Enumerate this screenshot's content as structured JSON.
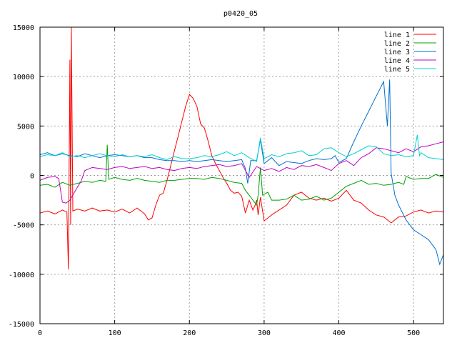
{
  "chart_data": {
    "type": "line",
    "title": "p0420_05",
    "xlabel": "",
    "ylabel": "",
    "xlim": [
      0,
      540
    ],
    "ylim": [
      -15000,
      15000
    ],
    "x_ticks": [
      0,
      100,
      200,
      300,
      400,
      500
    ],
    "y_ticks": [
      -15000,
      -10000,
      -5000,
      0,
      5000,
      10000,
      15000
    ],
    "grid": true,
    "legend_position": "top-right",
    "series": [
      {
        "name": "line 1",
        "color": "#ff0000",
        "points": [
          [
            0,
            -3800
          ],
          [
            10,
            -3600
          ],
          [
            20,
            -3900
          ],
          [
            30,
            -3500
          ],
          [
            36,
            -3700
          ],
          [
            38,
            -9500
          ],
          [
            40,
            11700
          ],
          [
            41,
            -5000
          ],
          [
            42,
            15000
          ],
          [
            44,
            -3600
          ],
          [
            50,
            -3400
          ],
          [
            60,
            -3600
          ],
          [
            70,
            -3300
          ],
          [
            80,
            -3600
          ],
          [
            90,
            -3500
          ],
          [
            100,
            -3700
          ],
          [
            110,
            -3400
          ],
          [
            120,
            -3800
          ],
          [
            130,
            -3300
          ],
          [
            140,
            -3900
          ],
          [
            145,
            -4500
          ],
          [
            150,
            -4300
          ],
          [
            155,
            -3000
          ],
          [
            160,
            -2000
          ],
          [
            165,
            -1800
          ],
          [
            170,
            -500
          ],
          [
            175,
            1000
          ],
          [
            180,
            2500
          ],
          [
            185,
            4000
          ],
          [
            190,
            5500
          ],
          [
            195,
            7000
          ],
          [
            200,
            8200
          ],
          [
            205,
            7800
          ],
          [
            210,
            7000
          ],
          [
            215,
            5200
          ],
          [
            220,
            4800
          ],
          [
            225,
            3500
          ],
          [
            230,
            2000
          ],
          [
            235,
            1200
          ],
          [
            240,
            500
          ],
          [
            245,
            -200
          ],
          [
            250,
            -800
          ],
          [
            255,
            -1500
          ],
          [
            260,
            -1800
          ],
          [
            265,
            -1700
          ],
          [
            270,
            -2100
          ],
          [
            275,
            -3800
          ],
          [
            280,
            -2500
          ],
          [
            285,
            -3500
          ],
          [
            288,
            -3000
          ],
          [
            290,
            -2500
          ],
          [
            292,
            -4000
          ],
          [
            295,
            -2200
          ],
          [
            300,
            -4600
          ],
          [
            305,
            -4300
          ],
          [
            310,
            -4000
          ],
          [
            320,
            -3500
          ],
          [
            330,
            -3000
          ],
          [
            340,
            -2000
          ],
          [
            350,
            -1700
          ],
          [
            360,
            -2300
          ],
          [
            370,
            -2500
          ],
          [
            380,
            -2300
          ],
          [
            390,
            -2600
          ],
          [
            400,
            -2300
          ],
          [
            410,
            -1500
          ],
          [
            420,
            -2500
          ],
          [
            430,
            -2800
          ],
          [
            440,
            -3500
          ],
          [
            450,
            -4000
          ],
          [
            460,
            -4200
          ],
          [
            470,
            -4800
          ],
          [
            480,
            -4200
          ],
          [
            490,
            -4100
          ],
          [
            500,
            -3700
          ],
          [
            510,
            -3500
          ],
          [
            520,
            -3800
          ],
          [
            530,
            -3600
          ],
          [
            540,
            -3700
          ]
        ]
      },
      {
        "name": "line 2",
        "color": "#00a000",
        "points": [
          [
            0,
            -1000
          ],
          [
            10,
            -900
          ],
          [
            20,
            -1200
          ],
          [
            30,
            -700
          ],
          [
            40,
            -1000
          ],
          [
            50,
            -800
          ],
          [
            60,
            -600
          ],
          [
            70,
            -700
          ],
          [
            80,
            -500
          ],
          [
            88,
            -600
          ],
          [
            90,
            3100
          ],
          [
            92,
            -400
          ],
          [
            100,
            -200
          ],
          [
            110,
            -400
          ],
          [
            120,
            -500
          ],
          [
            130,
            -300
          ],
          [
            140,
            -500
          ],
          [
            150,
            -600
          ],
          [
            160,
            -700
          ],
          [
            170,
            -500
          ],
          [
            180,
            -500
          ],
          [
            190,
            -400
          ],
          [
            200,
            -300
          ],
          [
            210,
            -300
          ],
          [
            220,
            -400
          ],
          [
            230,
            -200
          ],
          [
            240,
            -300
          ],
          [
            250,
            -500
          ],
          [
            260,
            -700
          ],
          [
            270,
            -800
          ],
          [
            275,
            -1500
          ],
          [
            280,
            -2000
          ],
          [
            285,
            -2500
          ],
          [
            290,
            -3000
          ],
          [
            292,
            -2000
          ],
          [
            295,
            800
          ],
          [
            298,
            -2000
          ],
          [
            305,
            -1700
          ],
          [
            310,
            -2500
          ],
          [
            320,
            -2500
          ],
          [
            330,
            -2400
          ],
          [
            340,
            -2000
          ],
          [
            350,
            -2500
          ],
          [
            360,
            -2400
          ],
          [
            370,
            -2100
          ],
          [
            380,
            -2500
          ],
          [
            390,
            -2300
          ],
          [
            400,
            -1700
          ],
          [
            410,
            -1100
          ],
          [
            420,
            -800
          ],
          [
            430,
            -500
          ],
          [
            440,
            -900
          ],
          [
            450,
            -800
          ],
          [
            460,
            -1000
          ],
          [
            470,
            -900
          ],
          [
            480,
            -700
          ],
          [
            487,
            -900
          ],
          [
            490,
            -100
          ],
          [
            500,
            -400
          ],
          [
            510,
            -300
          ],
          [
            520,
            -300
          ],
          [
            530,
            100
          ],
          [
            540,
            -200
          ]
        ]
      },
      {
        "name": "line 3",
        "color": "#0070d0",
        "points": [
          [
            0,
            2100
          ],
          [
            10,
            2300
          ],
          [
            20,
            2000
          ],
          [
            30,
            2200
          ],
          [
            40,
            2000
          ],
          [
            50,
            1900
          ],
          [
            60,
            2200
          ],
          [
            70,
            2000
          ],
          [
            80,
            1800
          ],
          [
            90,
            2000
          ],
          [
            100,
            2100
          ],
          [
            110,
            2000
          ],
          [
            120,
            1900
          ],
          [
            130,
            2000
          ],
          [
            140,
            1800
          ],
          [
            150,
            1800
          ],
          [
            160,
            1600
          ],
          [
            170,
            1500
          ],
          [
            180,
            1500
          ],
          [
            190,
            1400
          ],
          [
            200,
            1500
          ],
          [
            210,
            1400
          ],
          [
            220,
            1500
          ],
          [
            230,
            1600
          ],
          [
            240,
            1500
          ],
          [
            250,
            1400
          ],
          [
            260,
            1500
          ],
          [
            270,
            1600
          ],
          [
            275,
            700
          ],
          [
            278,
            -800
          ],
          [
            282,
            1500
          ],
          [
            290,
            1500
          ],
          [
            295,
            3600
          ],
          [
            300,
            1200
          ],
          [
            310,
            1800
          ],
          [
            320,
            1000
          ],
          [
            330,
            1400
          ],
          [
            340,
            1300
          ],
          [
            350,
            1200
          ],
          [
            360,
            1500
          ],
          [
            370,
            1700
          ],
          [
            380,
            1600
          ],
          [
            390,
            1700
          ],
          [
            395,
            2000
          ],
          [
            400,
            1300
          ],
          [
            410,
            1700
          ],
          [
            420,
            3400
          ],
          [
            430,
            5000
          ],
          [
            440,
            6500
          ],
          [
            450,
            8000
          ],
          [
            460,
            9500
          ],
          [
            465,
            5000
          ],
          [
            468,
            9700
          ],
          [
            470,
            200
          ],
          [
            475,
            -2000
          ],
          [
            480,
            -3000
          ],
          [
            490,
            -4500
          ],
          [
            500,
            -5500
          ],
          [
            510,
            -6000
          ],
          [
            520,
            -6500
          ],
          [
            530,
            -7500
          ],
          [
            535,
            -9000
          ],
          [
            540,
            -8000
          ]
        ]
      },
      {
        "name": "line 4",
        "color": "#c000c0",
        "points": [
          [
            0,
            -500
          ],
          [
            10,
            -200
          ],
          [
            20,
            -100
          ],
          [
            25,
            -300
          ],
          [
            30,
            -2700
          ],
          [
            35,
            -2800
          ],
          [
            40,
            -2500
          ],
          [
            50,
            -1200
          ],
          [
            55,
            -600
          ],
          [
            60,
            500
          ],
          [
            70,
            800
          ],
          [
            80,
            700
          ],
          [
            90,
            600
          ],
          [
            100,
            800
          ],
          [
            110,
            900
          ],
          [
            120,
            700
          ],
          [
            130,
            800
          ],
          [
            140,
            900
          ],
          [
            150,
            700
          ],
          [
            160,
            800
          ],
          [
            170,
            600
          ],
          [
            180,
            500
          ],
          [
            190,
            700
          ],
          [
            200,
            800
          ],
          [
            210,
            700
          ],
          [
            220,
            900
          ],
          [
            230,
            1000
          ],
          [
            240,
            1100
          ],
          [
            250,
            900
          ],
          [
            260,
            1000
          ],
          [
            270,
            1200
          ],
          [
            280,
            -200
          ],
          [
            290,
            900
          ],
          [
            300,
            500
          ],
          [
            310,
            700
          ],
          [
            320,
            400
          ],
          [
            330,
            800
          ],
          [
            340,
            600
          ],
          [
            350,
            1000
          ],
          [
            360,
            900
          ],
          [
            370,
            1100
          ],
          [
            380,
            800
          ],
          [
            390,
            500
          ],
          [
            400,
            1200
          ],
          [
            410,
            1500
          ],
          [
            420,
            1000
          ],
          [
            430,
            1800
          ],
          [
            440,
            2200
          ],
          [
            450,
            2800
          ],
          [
            460,
            2700
          ],
          [
            470,
            2500
          ],
          [
            480,
            2300
          ],
          [
            490,
            2700
          ],
          [
            500,
            2400
          ],
          [
            510,
            2900
          ],
          [
            520,
            3000
          ],
          [
            530,
            3200
          ],
          [
            540,
            3400
          ]
        ]
      },
      {
        "name": "line 5",
        "color": "#00d0d0",
        "points": [
          [
            0,
            1900
          ],
          [
            10,
            2100
          ],
          [
            20,
            2000
          ],
          [
            30,
            2300
          ],
          [
            40,
            1900
          ],
          [
            50,
            2000
          ],
          [
            60,
            1800
          ],
          [
            70,
            2000
          ],
          [
            80,
            2200
          ],
          [
            90,
            2000
          ],
          [
            100,
            1900
          ],
          [
            110,
            2100
          ],
          [
            120,
            1900
          ],
          [
            130,
            2000
          ],
          [
            140,
            1900
          ],
          [
            150,
            2100
          ],
          [
            160,
            1800
          ],
          [
            170,
            1600
          ],
          [
            180,
            1900
          ],
          [
            190,
            1700
          ],
          [
            200,
            1700
          ],
          [
            210,
            1800
          ],
          [
            220,
            2000
          ],
          [
            230,
            1900
          ],
          [
            240,
            2100
          ],
          [
            250,
            2400
          ],
          [
            260,
            2000
          ],
          [
            270,
            2300
          ],
          [
            280,
            1800
          ],
          [
            290,
            1400
          ],
          [
            295,
            3800
          ],
          [
            300,
            1700
          ],
          [
            310,
            2100
          ],
          [
            320,
            1900
          ],
          [
            330,
            2200
          ],
          [
            340,
            2300
          ],
          [
            350,
            2500
          ],
          [
            360,
            2000
          ],
          [
            370,
            2100
          ],
          [
            380,
            2700
          ],
          [
            390,
            2800
          ],
          [
            400,
            2300
          ],
          [
            410,
            1900
          ],
          [
            420,
            2200
          ],
          [
            430,
            2600
          ],
          [
            440,
            3000
          ],
          [
            450,
            2900
          ],
          [
            460,
            2200
          ],
          [
            470,
            2000
          ],
          [
            480,
            2100
          ],
          [
            490,
            1900
          ],
          [
            500,
            2000
          ],
          [
            505,
            4100
          ],
          [
            508,
            2000
          ],
          [
            510,
            2300
          ],
          [
            520,
            1800
          ],
          [
            530,
            1700
          ],
          [
            540,
            1600
          ]
        ]
      }
    ]
  }
}
